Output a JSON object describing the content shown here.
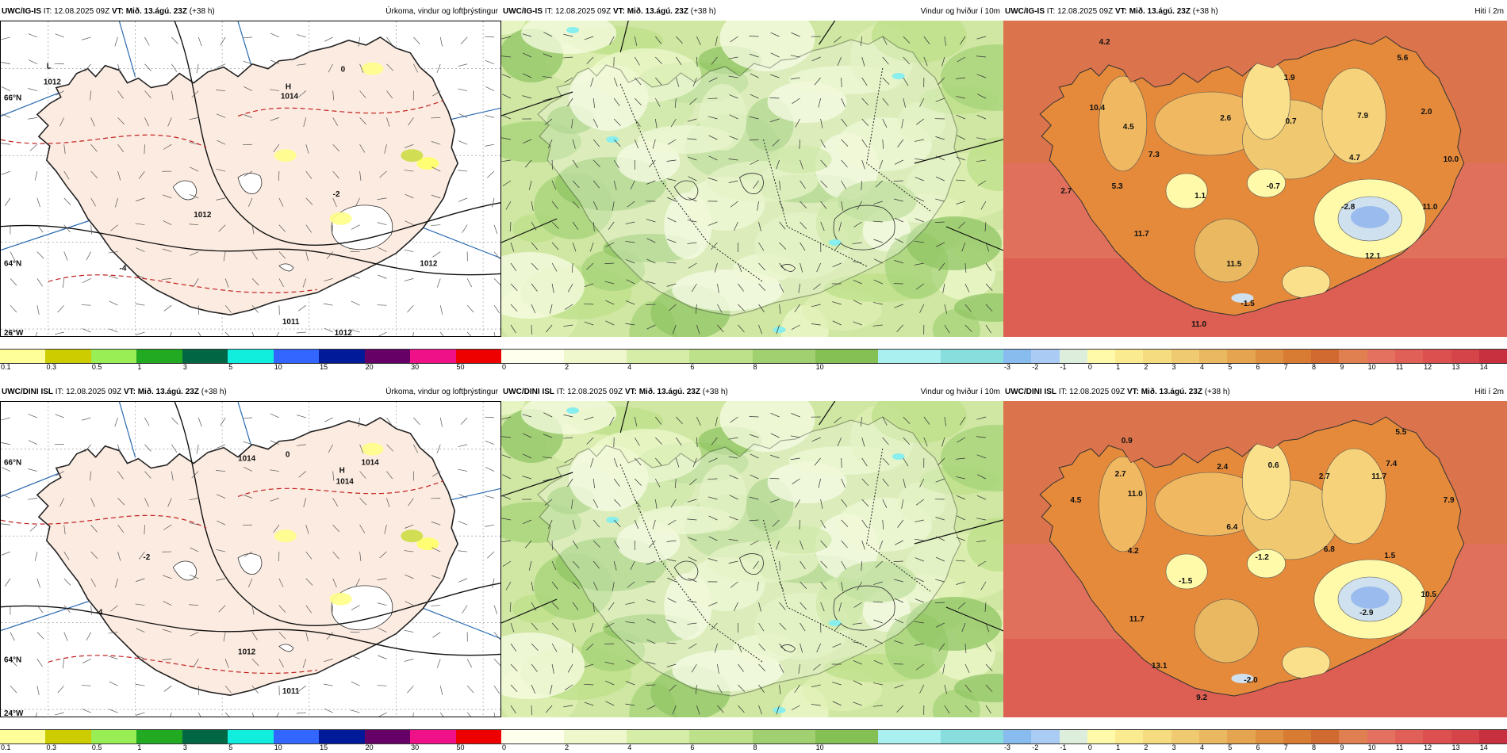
{
  "panels": [
    {
      "id": "top-precip",
      "model": "UWC/IG-IS",
      "it": " IT: 12.08.2025 09Z ",
      "vt_label": "VT:",
      "vt": " Mið. 13.ágú. 23Z",
      "lead": " (+38 h)",
      "title": "Úrkoma, vindur og loftþrýstingur",
      "map_labels": [
        "L",
        "1012",
        "H",
        "1014",
        "1012",
        "1012",
        "1011",
        "1012",
        "0",
        "-2",
        "-4",
        "66°N",
        "64°N",
        "26°W"
      ],
      "scale": [
        "0.1",
        "0.3",
        "0.5",
        "1",
        "3",
        "5",
        "10",
        "15",
        "20",
        "30",
        "50"
      ],
      "colors": [
        "#ffff99",
        "#cccc00",
        "#99ee55",
        "#22aa22",
        "#006644",
        "#11eedd",
        "#3366ff",
        "#001a99",
        "#660066",
        "#ee1188",
        "#ee0000"
      ]
    },
    {
      "id": "top-wind",
      "model": "UWC/IG-IS",
      "it": " IT: 12.08.2025 09Z ",
      "vt_label": "VT:",
      "vt": " Mið. 13.ágú. 23Z",
      "lead": " (+38 h)",
      "title": "Vindur og hviður í 10m",
      "map_labels": [],
      "scale": [
        "0",
        "2",
        "4",
        "6",
        "8",
        "10"
      ],
      "colors": [
        "#ffffee",
        "#eef8cc",
        "#d6eda8",
        "#bde08a",
        "#a0d070",
        "#85c054",
        "#aaf0f0",
        "#88dddd"
      ]
    },
    {
      "id": "top-temp",
      "model": "UWC/IG-IS",
      "it": " IT: 12.08.2025 09Z ",
      "vt_label": "VT:",
      "vt": " Mið. 13.ágú. 23Z",
      "lead": " (+38 h)",
      "title": "Hiti í 2m",
      "map_labels": [
        "4.2",
        "5.6",
        "1.9",
        "10.4",
        "4.5",
        "2.6",
        "0.7",
        "7.9",
        "2.0",
        "7.3",
        "4.7",
        "10.0",
        "5.3",
        "2.7",
        "1.1",
        "-0.7",
        "-2.8",
        "11.0",
        "11.7",
        "12.1",
        "11.5",
        "-1.5",
        "11.0"
      ],
      "scale": [
        "-3",
        "-2",
        "-1",
        "0",
        "1",
        "2",
        "3",
        "4",
        "5",
        "6",
        "7",
        "8",
        "9",
        "10",
        "11",
        "12",
        "13",
        "14"
      ],
      "colors": [
        "#88bbee",
        "#aaccf4",
        "#ddeedd",
        "#fffaaa",
        "#fbeb90",
        "#f6dc80",
        "#f0ca70",
        "#eab860",
        "#e4a450",
        "#de9040",
        "#d87c34",
        "#d06a30",
        "#e08050",
        "#e47060",
        "#e06058",
        "#dc5050",
        "#d44448",
        "#c83040"
      ]
    },
    {
      "id": "bottom-precip",
      "model": "UWC/DINI ISL",
      "it": " IT: 12.08.2025 09Z ",
      "vt_label": "VT:",
      "vt": " Mið. 13.ágú. 23Z",
      "lead": " (+38 h)",
      "title": "Úrkoma, vindur og loftþrýstingur",
      "map_labels": [
        "H",
        "1014",
        "1014",
        "1014",
        "1012",
        "1011",
        "0",
        "-2",
        "-4",
        "66°N",
        "64°N",
        "24°W"
      ],
      "scale": [
        "0.1",
        "0.3",
        "0.5",
        "1",
        "3",
        "5",
        "10",
        "15",
        "20",
        "30",
        "50"
      ],
      "colors": [
        "#ffff99",
        "#cccc00",
        "#99ee55",
        "#22aa22",
        "#006644",
        "#11eedd",
        "#3366ff",
        "#001a99",
        "#660066",
        "#ee1188",
        "#ee0000"
      ]
    },
    {
      "id": "bottom-wind",
      "model": "UWC/DINI ISL",
      "it": " IT: 12.08.2025 09Z ",
      "vt_label": "VT:",
      "vt": " Mið. 13.ágú. 23Z",
      "lead": " (+38 h)",
      "title": "Vindur og hviður í 10m",
      "map_labels": [],
      "scale": [
        "0",
        "2",
        "4",
        "6",
        "8",
        "10"
      ],
      "colors": [
        "#ffffee",
        "#eef8cc",
        "#d6eda8",
        "#bde08a",
        "#a0d070",
        "#85c054",
        "#aaf0f0",
        "#88dddd"
      ]
    },
    {
      "id": "bottom-temp",
      "model": "UWC/DINI ISL",
      "it": " IT: 12.08.2025 09Z ",
      "vt_label": "VT:",
      "vt": " Mið. 13.ágú. 23Z",
      "lead": " (+38 h)",
      "title": "Hiti í 2m",
      "map_labels": [
        "0.9",
        "5.5",
        "4.5",
        "2.7",
        "2.4",
        "0.6",
        "2.7",
        "7.4",
        "7.9",
        "11.0",
        "11.7",
        "6.4",
        "4.2",
        "-1.5",
        "-1.2",
        "6.8",
        "1.5",
        "10.5",
        "11.7",
        "-2.9",
        "13.1",
        "-2.0",
        "9.2"
      ],
      "scale": [
        "-3",
        "-2",
        "-1",
        "0",
        "1",
        "2",
        "3",
        "4",
        "5",
        "6",
        "7",
        "8",
        "9",
        "10",
        "11",
        "12",
        "13",
        "14"
      ],
      "colors": [
        "#88bbee",
        "#aaccf4",
        "#ddeedd",
        "#fffaaa",
        "#fbeb90",
        "#f6dc80",
        "#f0ca70",
        "#eab860",
        "#e4a450",
        "#de9040",
        "#d87c34",
        "#d06a30",
        "#e08050",
        "#e47060",
        "#e06058",
        "#dc5050",
        "#d44448",
        "#c83040"
      ]
    }
  ]
}
